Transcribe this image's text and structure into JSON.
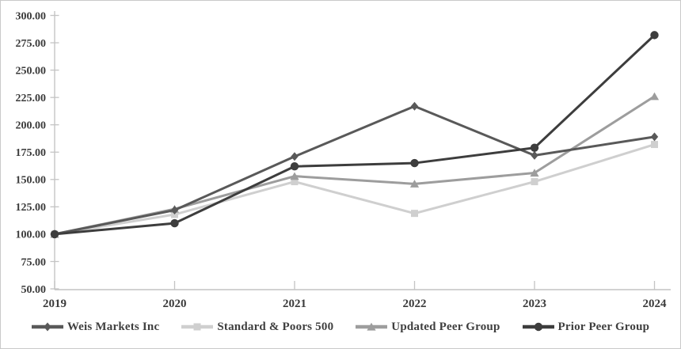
{
  "chart_data": {
    "type": "line",
    "title": "",
    "xlabel": "",
    "ylabel": "",
    "categories": [
      "2019",
      "2020",
      "2021",
      "2022",
      "2023",
      "2024"
    ],
    "series": [
      {
        "name": "Weis Markets Inc",
        "marker": "diamond",
        "color": "#595959",
        "values": [
          100,
          122,
          171,
          217,
          172,
          189
        ]
      },
      {
        "name": "Standard & Poors 500",
        "marker": "square",
        "color": "#cfcfcf",
        "values": [
          100,
          118,
          148,
          119,
          148,
          182
        ]
      },
      {
        "name": "Updated Peer Group",
        "marker": "triangle",
        "color": "#9d9d9d",
        "values": [
          100,
          123,
          153,
          146,
          156,
          226
        ]
      },
      {
        "name": "Prior Peer Group",
        "marker": "circle",
        "color": "#3d3d3d",
        "values": [
          100,
          110,
          162,
          165,
          179,
          282
        ]
      }
    ],
    "ylim": [
      50,
      300
    ],
    "ytick_step": 25,
    "y_tick_labels": [
      "300.00",
      "275.00",
      "250.00",
      "225.00",
      "200.00",
      "175.00",
      "150.00",
      "125.00",
      "100.00",
      "75.00",
      "50.00"
    ],
    "grid": false,
    "legend_position": "bottom",
    "axis_color": "#c4c4c4",
    "tick_label_color": "#3b3b3b"
  }
}
